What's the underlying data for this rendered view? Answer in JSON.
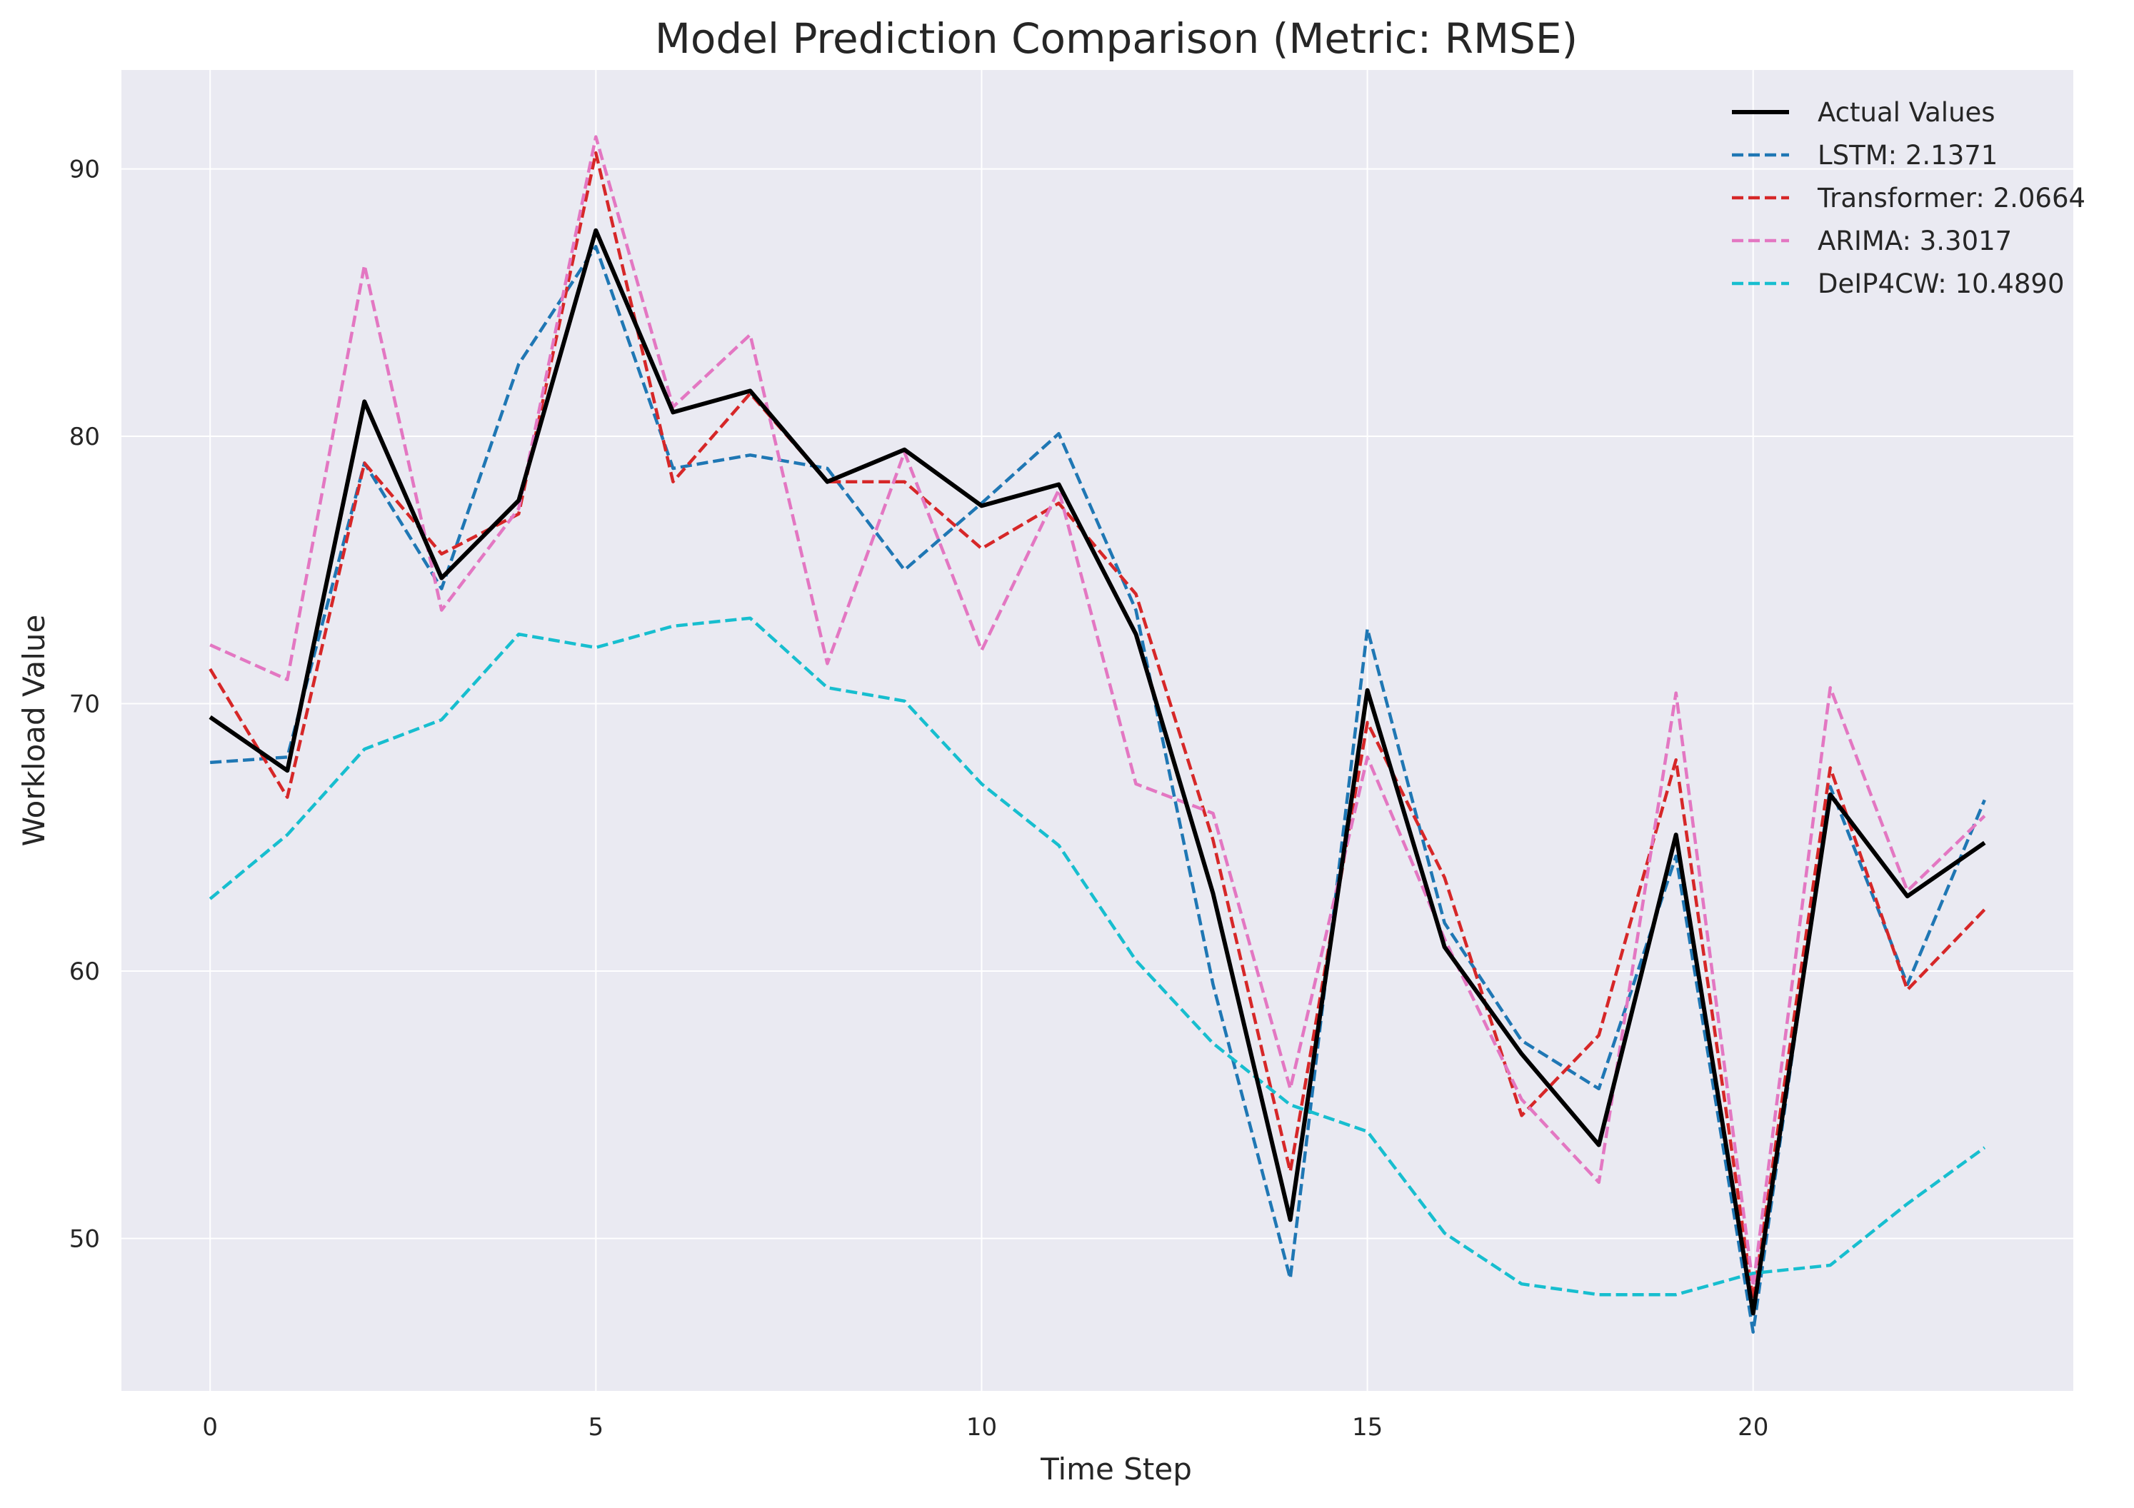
{
  "chart_data": {
    "type": "line",
    "title": "Model Prediction Comparison (Metric: RMSE)",
    "xlabel": "Time Step",
    "ylabel": "Workload Value",
    "xlim": [
      -1.15,
      24.15
    ],
    "ylim": [
      44.3,
      93.7
    ],
    "xticks": [
      0,
      5,
      10,
      15,
      20
    ],
    "yticks": [
      50,
      60,
      70,
      80,
      90
    ],
    "grid": true,
    "legend_position": "top-right",
    "x": [
      0,
      1,
      2,
      3,
      4,
      5,
      6,
      7,
      8,
      9,
      10,
      11,
      12,
      13,
      14,
      15,
      16,
      17,
      18,
      19,
      20,
      21,
      22,
      23
    ],
    "series": [
      {
        "name": "Actual Values",
        "color": "#000000",
        "style": "solid",
        "values": [
          69.5,
          67.5,
          81.3,
          74.7,
          77.6,
          87.7,
          80.9,
          81.7,
          78.3,
          79.5,
          77.4,
          78.2,
          72.6,
          62.9,
          50.7,
          70.5,
          60.9,
          56.9,
          53.5,
          65.1,
          47.2,
          66.6,
          62.8,
          64.8
        ]
      },
      {
        "name": "LSTM: 2.1371",
        "color": "#1f77b4",
        "style": "dashed",
        "values": [
          67.8,
          68.0,
          79.0,
          74.3,
          82.7,
          87.1,
          78.8,
          79.3,
          78.8,
          75.0,
          77.5,
          80.1,
          73.5,
          59.5,
          48.5,
          72.8,
          61.8,
          57.4,
          55.6,
          64.3,
          46.5,
          66.9,
          59.5,
          66.4
        ]
      },
      {
        "name": "Transformer: 2.0664",
        "color": "#d62728",
        "style": "dashed",
        "values": [
          71.3,
          66.5,
          79.0,
          75.6,
          77.1,
          90.6,
          78.3,
          81.6,
          78.3,
          78.3,
          75.8,
          77.5,
          74.1,
          64.9,
          52.5,
          69.3,
          63.5,
          54.6,
          57.6,
          67.9,
          47.7,
          67.6,
          59.3,
          62.3
        ]
      },
      {
        "name": "ARIMA: 3.3017",
        "color": "#e377c2",
        "style": "dashed",
        "values": [
          72.2,
          70.9,
          86.4,
          73.5,
          77.3,
          91.2,
          81.1,
          83.8,
          71.5,
          79.4,
          72.0,
          78.0,
          67.0,
          65.9,
          55.6,
          68.0,
          61.2,
          55.2,
          52.1,
          70.4,
          48.2,
          70.6,
          63.0,
          65.8
        ]
      },
      {
        "name": "DeIP4CW: 10.4890",
        "color": "#17becf",
        "style": "dashed",
        "values": [
          62.7,
          65.1,
          68.3,
          69.4,
          72.6,
          72.1,
          72.9,
          73.2,
          70.6,
          70.1,
          67.0,
          64.7,
          60.4,
          57.3,
          55.0,
          54.0,
          50.2,
          48.3,
          47.9,
          47.9,
          48.7,
          49.0,
          51.3,
          53.4
        ]
      }
    ]
  }
}
